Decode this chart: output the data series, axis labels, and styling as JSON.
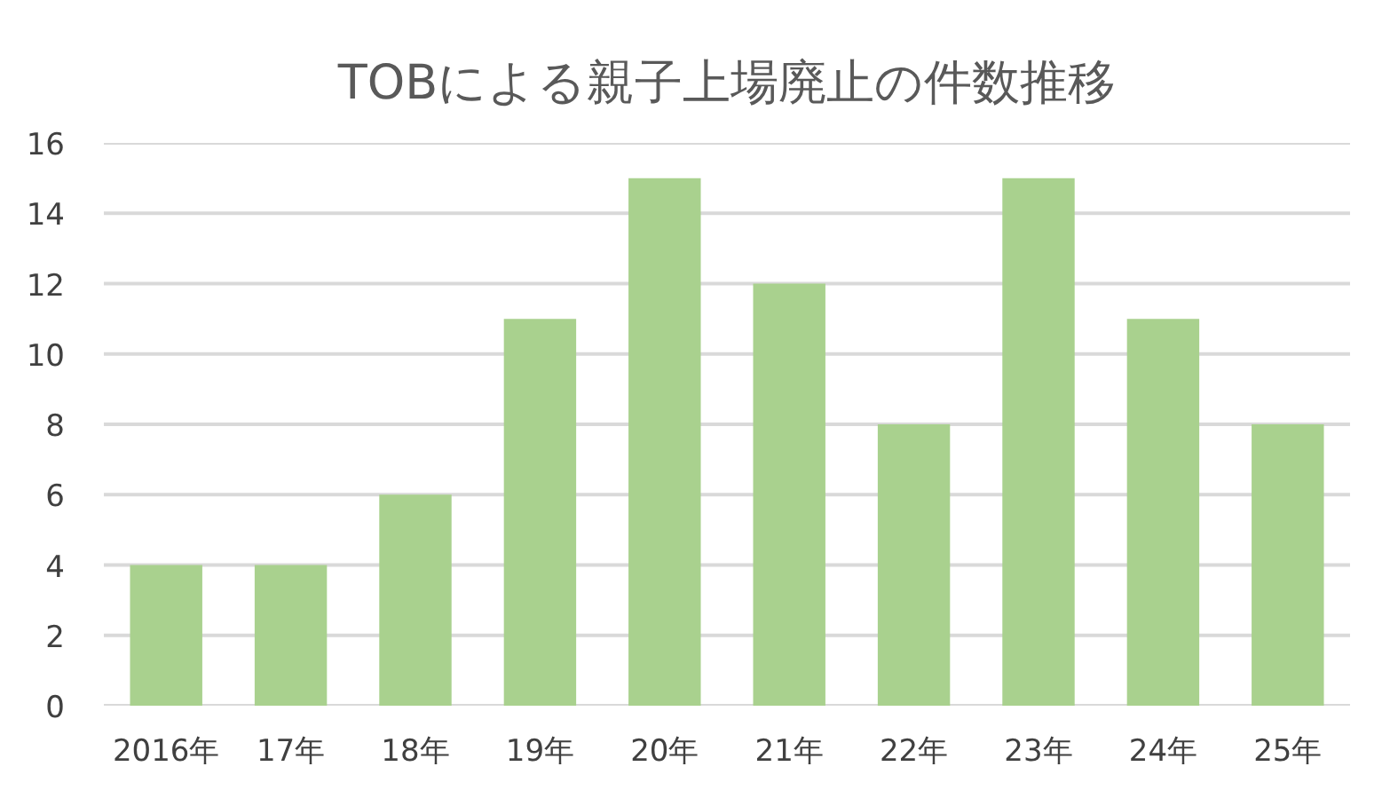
{
  "chart_data": {
    "type": "bar",
    "title": "TOBによる親子上場廃止の件数推移",
    "categories": [
      "2016年",
      "17年",
      "18年",
      "19年",
      "20年",
      "21年",
      "22年",
      "23年",
      "24年",
      "25年"
    ],
    "values": [
      4,
      4,
      6,
      11,
      15,
      12,
      8,
      15,
      11,
      8
    ],
    "color": "#a9d18e",
    "ylim": [
      0,
      16
    ],
    "yticks": [
      0,
      2,
      4,
      6,
      8,
      10,
      12,
      14,
      16
    ],
    "grid": "y"
  }
}
